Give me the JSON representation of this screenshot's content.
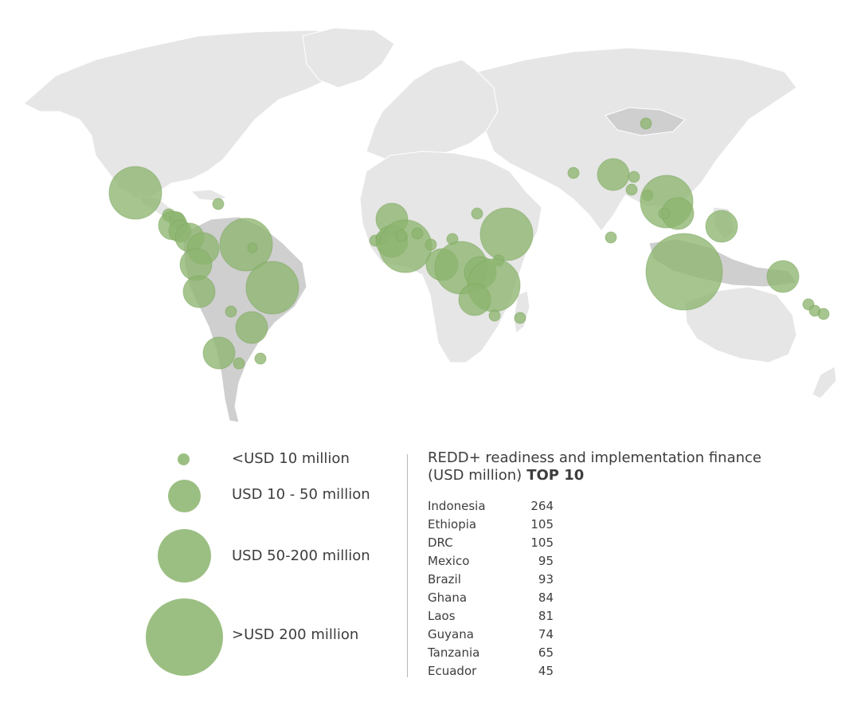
{
  "map": {
    "bubble_color": "#8db56f",
    "land_color": "#e6e6e6",
    "recipient_color": "#cfcfcf"
  },
  "legend": {
    "items": [
      {
        "label": "<USD 10 million",
        "size_class": "small"
      },
      {
        "label": "USD 10 - 50 million",
        "size_class": "medium"
      },
      {
        "label": "USD 50-200 million",
        "size_class": "large"
      },
      {
        "label": ">USD 200 million",
        "size_class": "xlarge"
      }
    ]
  },
  "top10": {
    "title_line1": "REDD+ readiness and implementation finance",
    "title_line2": "(USD million)",
    "title_strong": "TOP 10",
    "rows": [
      {
        "country": "Indonesia",
        "value": "264"
      },
      {
        "country": "Ethiopia",
        "value": "105"
      },
      {
        "country": "DRC",
        "value": "105"
      },
      {
        "country": "Mexico",
        "value": "95"
      },
      {
        "country": "Brazil",
        "value": "93"
      },
      {
        "country": "Ghana",
        "value": "84"
      },
      {
        "country": "Laos",
        "value": "81"
      },
      {
        "country": "Guyana",
        "value": "74"
      },
      {
        "country": "Tanzania",
        "value": "65"
      },
      {
        "country": "Ecuador",
        "value": "45"
      }
    ]
  }
}
